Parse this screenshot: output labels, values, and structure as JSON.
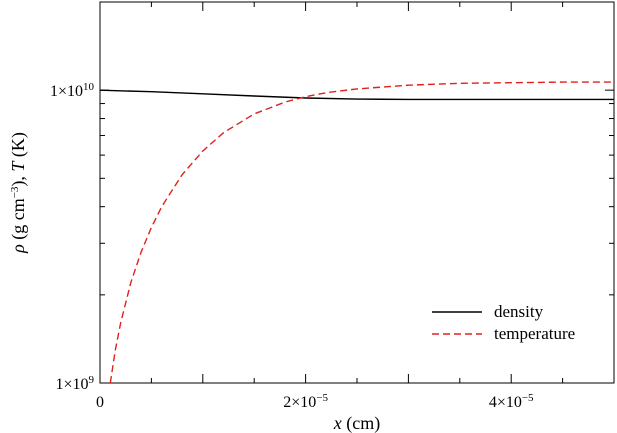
{
  "chart_data": {
    "type": "line",
    "xlabel": {
      "var": "x",
      "unit": " (cm)"
    },
    "ylabel": {
      "rho": "ρ",
      "open": " (g cm",
      "exp": "−3",
      "close": "), ",
      "T": "T",
      "unit": " (K)"
    },
    "xlim": [
      0,
      5e-05
    ],
    "ylim": [
      1000000000.0,
      20000000000.0
    ],
    "yscale": "log",
    "grid": false,
    "legend_position": "bottom-right",
    "x_ticks": [
      {
        "value": 0,
        "mant": "0",
        "exp": ""
      },
      {
        "value": 2e-05,
        "mant": "2×10",
        "exp": "−5"
      },
      {
        "value": 4e-05,
        "mant": "4×10",
        "exp": "−5"
      }
    ],
    "y_ticks": [
      {
        "value": 1000000000.0,
        "mant": "1×10",
        "exp": "9"
      },
      {
        "value": 10000000000.0,
        "mant": "1×10",
        "exp": "10"
      }
    ],
    "series": [
      {
        "name": "density",
        "color": "#000000",
        "dash": "solid",
        "x": [
          0,
          5e-06,
          1e-05,
          1.5e-05,
          2e-05,
          2.5e-05,
          3e-05,
          3.5e-05,
          4e-05,
          4.5e-05,
          5e-05
        ],
        "y": [
          10000000000.0,
          9880000000.0,
          9720000000.0,
          9550000000.0,
          9400000000.0,
          9320000000.0,
          9300000000.0,
          9300000000.0,
          9300000000.0,
          9300000000.0,
          9300000000.0
        ]
      },
      {
        "name": "temperature",
        "color": "#e0201b",
        "dash": "dashed",
        "x": [
          1e-06,
          1.5e-06,
          2e-06,
          3e-06,
          4e-06,
          5e-06,
          6e-06,
          8e-06,
          1e-05,
          1.2e-05,
          1.5e-05,
          1.8e-05,
          2e-05,
          2.2e-05,
          2.5e-05,
          3e-05,
          3.5e-05,
          4e-05,
          4.5e-05,
          5e-05
        ],
        "y": [
          1000000000.0,
          1300000000.0,
          1600000000.0,
          2200000000.0,
          2800000000.0,
          3400000000.0,
          4000000000.0,
          5150000000.0,
          6200000000.0,
          7150000000.0,
          8300000000.0,
          9100000000.0,
          9500000000.0,
          9800000000.0,
          10100000000.0,
          10400000000.0,
          10550000000.0,
          10600000000.0,
          10650000000.0,
          10650000000.0
        ]
      }
    ]
  }
}
